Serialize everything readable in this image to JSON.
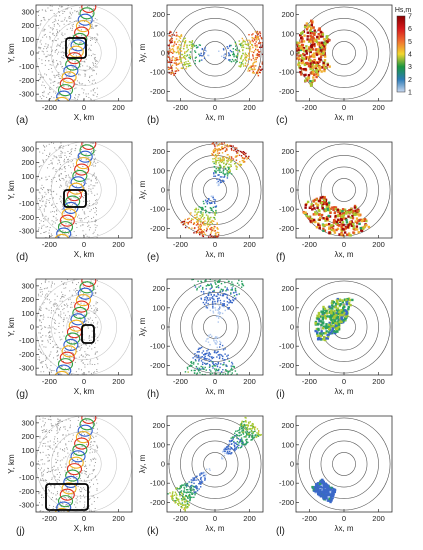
{
  "figure": {
    "colorbar": {
      "title": "Hs,m",
      "ticks": [
        "7",
        "6",
        "5",
        "4",
        "3",
        "2",
        "1"
      ],
      "colors": [
        "#8b0000",
        "#d7191c",
        "#f07030",
        "#f2d72e",
        "#1a9641",
        "#2c7bb6",
        "#c8d8f0"
      ]
    },
    "rows": [
      {
        "left": {
          "letter": "(a)",
          "ylabel": "Y, km",
          "xlabel": "X, km",
          "xticks": [
            "-200",
            "0",
            "200"
          ],
          "yticks": [
            "300",
            "200",
            "100",
            "0",
            "-100",
            "-200",
            "-300"
          ],
          "box": "upper"
        },
        "mid": {
          "letter": "(b)",
          "ylabel": "λy, m",
          "xlabel": "λx, m",
          "xticks": [
            "-200",
            "0",
            "200"
          ],
          "yticks": [
            "200",
            "100",
            "0",
            "-100",
            "-200"
          ],
          "pattern": "horizontal-fan"
        },
        "right": {
          "letter": "(c)",
          "xlabel": "λx, m",
          "xticks": [
            "-200",
            "0",
            "200"
          ],
          "yticks": [
            "200",
            "100",
            "0",
            "-100",
            "-200"
          ],
          "pattern": "arc-left-red"
        }
      },
      {
        "left": {
          "letter": "(d)",
          "ylabel": "Y, km",
          "xlabel": "X, km",
          "xticks": [
            "-200",
            "0",
            "200"
          ],
          "yticks": [
            "300",
            "200",
            "100",
            "0",
            "-100",
            "-200",
            "-300"
          ],
          "box": "center"
        },
        "mid": {
          "letter": "(e)",
          "ylabel": "λy, m",
          "xlabel": "λx, m",
          "xticks": [
            "-200",
            "0",
            "200"
          ],
          "yticks": [
            "200",
            "100",
            "0",
            "-100",
            "-200"
          ],
          "pattern": "diagonal-fan-red"
        },
        "right": {
          "letter": "(f)",
          "xlabel": "λx, m",
          "xticks": [
            "-200",
            "0",
            "200"
          ],
          "yticks": [
            "200",
            "100",
            "0",
            "-100",
            "-200"
          ],
          "pattern": "arc-bottom-red"
        }
      },
      {
        "left": {
          "letter": "(g)",
          "ylabel": "Y, km",
          "xlabel": "X, km",
          "xticks": [
            "-200",
            "0",
            "200"
          ],
          "yticks": [
            "300",
            "200",
            "100",
            "0",
            "-100",
            "-200",
            "-300"
          ],
          "box": "right-small"
        },
        "mid": {
          "letter": "(h)",
          "ylabel": "λy, m",
          "xlabel": "λx, m",
          "xticks": [
            "-200",
            "0",
            "200"
          ],
          "yticks": [
            "200",
            "100",
            "0",
            "-100",
            "-200"
          ],
          "pattern": "bowtie-blue"
        },
        "right": {
          "letter": "(i)",
          "xlabel": "λx, m",
          "xticks": [
            "-200",
            "0",
            "200"
          ],
          "yticks": [
            "200",
            "100",
            "0",
            "-100",
            "-200"
          ],
          "pattern": "arc-center-green"
        }
      },
      {
        "left": {
          "letter": "(j)",
          "ylabel": "Y, km",
          "xlabel": "X, km",
          "xticks": [
            "-200",
            "0",
            "200"
          ],
          "yticks": [
            "300",
            "200",
            "100",
            "0",
            "-100",
            "-200",
            "-300"
          ],
          "box": "lower-wide"
        },
        "mid": {
          "letter": "(k)",
          "ylabel": "λy, m",
          "xlabel": "λx, m",
          "xticks": [
            "-200",
            "0",
            "200"
          ],
          "yticks": [
            "200",
            "100",
            "0",
            "-100",
            "-200"
          ],
          "pattern": "diagonal-fan-green"
        },
        "right": {
          "letter": "(l)",
          "xlabel": "λx, m",
          "xticks": [
            "-200",
            "0",
            "200"
          ],
          "yticks": [
            "200",
            "100",
            "0",
            "-100",
            "-200"
          ],
          "pattern": "cluster-blue"
        }
      }
    ]
  },
  "chart_data": {
    "type": "scatter",
    "grid": true,
    "legend_placement": "top-right colorbar",
    "colorbar_label": "Hs,m",
    "colorbar_range": [
      1,
      7
    ],
    "panels": [
      {
        "id": "(a)",
        "xlabel": "X, km",
        "ylabel": "Y, km",
        "xlim": [
          -300,
          300
        ],
        "ylim": [
          -300,
          300
        ]
      },
      {
        "id": "(b)",
        "xlabel": "λx, m",
        "ylabel": "λy, m",
        "xlim": [
          -200,
          200
        ],
        "ylim": [
          -200,
          200
        ]
      },
      {
        "id": "(c)",
        "xlabel": "λx, m",
        "xlim": [
          -200,
          200
        ],
        "ylim": [
          -200,
          200
        ]
      },
      {
        "id": "(d)",
        "xlabel": "X, km",
        "ylabel": "Y, km",
        "xlim": [
          -300,
          300
        ],
        "ylim": [
          -300,
          300
        ]
      },
      {
        "id": "(e)",
        "xlabel": "λx, m",
        "ylabel": "λy, m",
        "xlim": [
          -200,
          200
        ],
        "ylim": [
          -200,
          200
        ]
      },
      {
        "id": "(f)",
        "xlabel": "λx, m",
        "xlim": [
          -200,
          200
        ],
        "ylim": [
          -200,
          200
        ]
      },
      {
        "id": "(g)",
        "xlabel": "X, km",
        "ylabel": "Y, km",
        "xlim": [
          -300,
          300
        ],
        "ylim": [
          -300,
          300
        ]
      },
      {
        "id": "(h)",
        "xlabel": "λx, m",
        "ylabel": "λy, m",
        "xlim": [
          -200,
          200
        ],
        "ylim": [
          -200,
          200
        ]
      },
      {
        "id": "(i)",
        "xlabel": "λx, m",
        "xlim": [
          -200,
          200
        ],
        "ylim": [
          -200,
          200
        ]
      },
      {
        "id": "(j)",
        "xlabel": "X, km",
        "ylabel": "Y, km",
        "xlim": [
          -300,
          300
        ],
        "ylim": [
          -300,
          300
        ]
      },
      {
        "id": "(k)",
        "xlabel": "λx, m",
        "ylabel": "λy, m",
        "xlim": [
          -200,
          200
        ],
        "ylim": [
          -200,
          200
        ]
      },
      {
        "id": "(l)",
        "xlabel": "λx, m",
        "xlim": [
          -200,
          200
        ],
        "ylim": [
          -200,
          200
        ]
      }
    ]
  }
}
